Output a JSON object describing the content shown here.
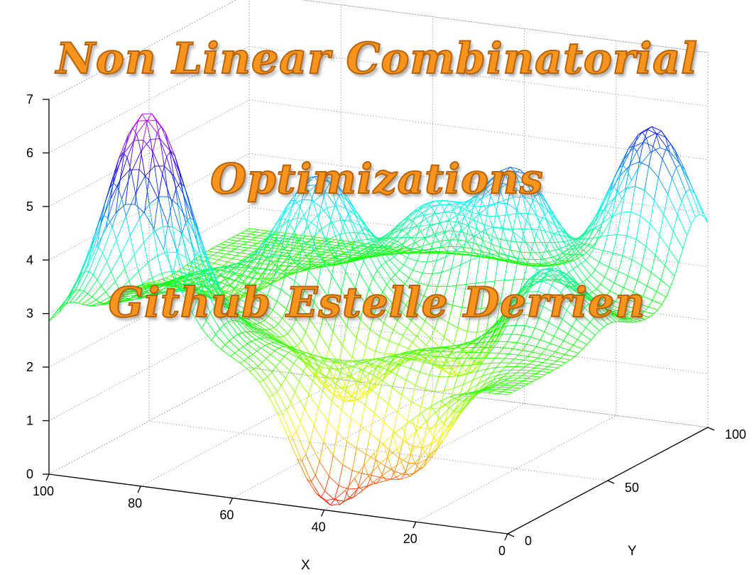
{
  "overlay_title": {
    "line1": "Non Linear Combinatorial",
    "line2": "Optimizations",
    "line3": "Github Estelle Derrien"
  },
  "chart_data": {
    "type": "surface-mesh",
    "title": "",
    "xlabel": "X",
    "ylabel": "Y",
    "zlabel": "",
    "xlim": [
      0,
      100
    ],
    "ylim": [
      0,
      100
    ],
    "zlim": [
      0,
      7
    ],
    "x_ticks": [
      "0",
      "20",
      "40",
      "60",
      "80",
      "100"
    ],
    "y_ticks": [
      "0",
      "50",
      "100"
    ],
    "z_ticks": [
      "0",
      "1",
      "2",
      "3",
      "4",
      "5",
      "6",
      "7"
    ],
    "grid": true,
    "colormap": "hsv",
    "colormap_stops": [
      "#ff0000",
      "#ffff00",
      "#00ff00",
      "#00ffff",
      "#0000ff",
      "#ff00ff"
    ],
    "surface": {
      "description_free": true,
      "base": 2.6,
      "peaks": [
        {
          "x": 82,
          "y": 8,
          "z": 6.8
        },
        {
          "x": 82,
          "y": 40,
          "z": 3.2
        },
        {
          "x": 65,
          "y": 55,
          "z": 4.9
        },
        {
          "x": 30,
          "y": 72,
          "z": 5.0
        },
        {
          "x": 10,
          "y": 95,
          "z": 5.6
        },
        {
          "x": 14,
          "y": 50,
          "z": 3.9
        },
        {
          "x": 28,
          "y": 30,
          "z": 2.6
        },
        {
          "x": 50,
          "y": 78,
          "z": 4.0
        },
        {
          "x": 85,
          "y": 60,
          "z": 2.1
        }
      ],
      "valleys": [
        {
          "x": 40,
          "y": 2,
          "z": 0.2
        },
        {
          "x": 25,
          "y": 10,
          "z": 0.8
        },
        {
          "x": 50,
          "y": 35,
          "z": 1.2
        },
        {
          "x": 30,
          "y": 50,
          "z": 1.4
        }
      ]
    }
  }
}
